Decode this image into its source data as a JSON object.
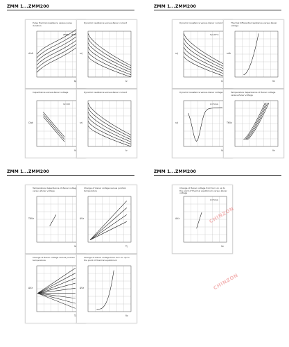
{
  "pages": [
    {
      "header": "ZMM 1...ZMM200",
      "panels": [
        {
          "title": "Pulse thermal resistance versus pulse duration",
          "ylabel": "rthA",
          "xlabel": "tp",
          "ann": "ZMM1...ZMM200"
        },
        {
          "title": "Dynamic resistance versus Zener current",
          "ylabel": "rzj",
          "xlabel": "Iz",
          "ann": ""
        },
        {
          "title": "Capacitance versus Zener voltage",
          "ylabel": "Ctot",
          "xlabel": "Vz",
          "ann": "Vz=0V"
        },
        {
          "title": "Dynamic resistance versus Zener current",
          "ylabel": "rzj",
          "xlabel": "Iz",
          "ann": ""
        }
      ]
    },
    {
      "header": "ZMM 1...ZMM200",
      "panels": [
        {
          "title": "Dynamic resistance versus Zener current",
          "ylabel": "rzj",
          "xlabel": "Iz",
          "ann": "Tj=25°C"
        },
        {
          "title": "Thermal differential resistance versus Zener voltage",
          "ylabel": "rzth",
          "xlabel": "Vz",
          "ann": ""
        },
        {
          "title": "Dynamic resistance versus Zener voltage",
          "ylabel": "rzj",
          "xlabel": "Vz",
          "ann": "Iz=5mA"
        },
        {
          "title": "Temperature dependence of Zener voltage versus Zener voltage",
          "ylabel": "TKVz",
          "xlabel": "Vz",
          "ann": ""
        }
      ]
    },
    {
      "header": "ZMM 1...ZMM200",
      "panels": [
        {
          "title": "Temperature dependence of Zener voltage versus Zener voltage",
          "ylabel": "TKVz",
          "xlabel": "Vz",
          "ann": ""
        },
        {
          "title": "Change of Zener voltage versus junction temperature",
          "ylabel": "ΔVz",
          "xlabel": "Tj",
          "ann": ""
        },
        {
          "title": "Change of Zener voltage versus junction temperature",
          "ylabel": "ΔVz",
          "xlabel": "Tj",
          "ann": ""
        },
        {
          "title": "Change of Zener voltage from turn on up to the point of thermal equilibrium",
          "ylabel": "ΔVz",
          "xlabel": "Vz",
          "ann": ""
        }
      ]
    },
    {
      "header": "ZMM 1...ZMM200",
      "panels": [
        {
          "title": "Change of Zener voltage from turn on up to the point of thermal equilibrium versus Zener voltage",
          "ylabel": "ΔVz",
          "xlabel": "Vz",
          "ann": "Iz=5mA"
        }
      ]
    }
  ],
  "watermark": "CHINZON"
}
